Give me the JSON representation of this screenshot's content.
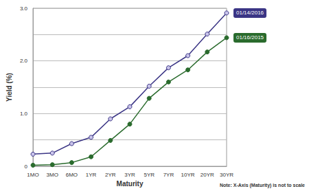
{
  "chart_data": {
    "type": "line",
    "x_label": "Maturity",
    "y_label": "Yield (%)",
    "note": "Note: X-Axis (Maturity) is not to scale",
    "categories": [
      "1MO",
      "3MO",
      "6MO",
      "1YR",
      "2YR",
      "3YR",
      "5YR",
      "7YR",
      "10YR",
      "20YR",
      "30YR"
    ],
    "series": [
      {
        "name": "01/14/2016",
        "color": "#3b3585",
        "marker": "circle",
        "values": [
          0.23,
          0.25,
          0.43,
          0.55,
          0.9,
          1.13,
          1.52,
          1.87,
          2.1,
          2.51,
          2.91
        ]
      },
      {
        "name": "01/16/2015",
        "color": "#2a6b2d",
        "marker": "circle",
        "values": [
          0.02,
          0.03,
          0.07,
          0.18,
          0.49,
          0.8,
          1.29,
          1.6,
          1.83,
          2.17,
          2.44
        ]
      }
    ],
    "ylim": [
      0,
      3
    ],
    "yticks": [
      0,
      {
        "value": 1,
        "label": "1.0"
      },
      {
        "value": 2,
        "label": "2.0"
      },
      {
        "value": 3,
        "label": "3.0"
      }
    ],
    "grid": true
  }
}
